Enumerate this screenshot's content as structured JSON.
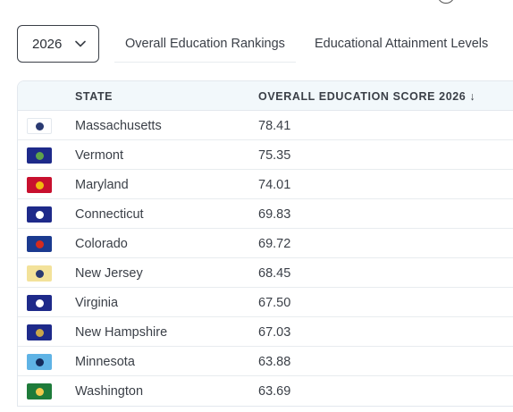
{
  "controls": {
    "year_value": "2026",
    "tabs": [
      {
        "label": "Overall Education Rankings"
      },
      {
        "label": "Educational Attainment Levels"
      }
    ]
  },
  "table": {
    "columns": {
      "state": "STATE",
      "score": "OVERALL EDUCATION SCORE 2026 ↓"
    },
    "rows": [
      {
        "state": "Massachusetts",
        "score": "78.41",
        "flag": {
          "bg": "#ffffff",
          "fg": "#2a3a72"
        }
      },
      {
        "state": "Vermont",
        "score": "75.35",
        "flag": {
          "bg": "#1e2a8a",
          "fg": "#5fa34a"
        }
      },
      {
        "state": "Maryland",
        "score": "74.01",
        "flag": {
          "bg": "#c8102e",
          "fg": "#f2b90d"
        }
      },
      {
        "state": "Connecticut",
        "score": "69.83",
        "flag": {
          "bg": "#1e2a8a",
          "fg": "#ffffff"
        }
      },
      {
        "state": "Colorado",
        "score": "69.72",
        "flag": {
          "bg": "#1b3a8f",
          "fg": "#d52b1e"
        }
      },
      {
        "state": "New Jersey",
        "score": "68.45",
        "flag": {
          "bg": "#f3e29a",
          "fg": "#2a3a72"
        }
      },
      {
        "state": "Virginia",
        "score": "67.50",
        "flag": {
          "bg": "#1e2a8a",
          "fg": "#ffffff"
        }
      },
      {
        "state": "New Hampshire",
        "score": "67.03",
        "flag": {
          "bg": "#1e2a8a",
          "fg": "#c9a74a"
        }
      },
      {
        "state": "Minnesota",
        "score": "63.88",
        "flag": {
          "bg": "#5fb3e5",
          "fg": "#142b5c"
        }
      },
      {
        "state": "Washington",
        "score": "63.69",
        "flag": {
          "bg": "#1e7b3a",
          "fg": "#f2c94c"
        }
      }
    ]
  }
}
